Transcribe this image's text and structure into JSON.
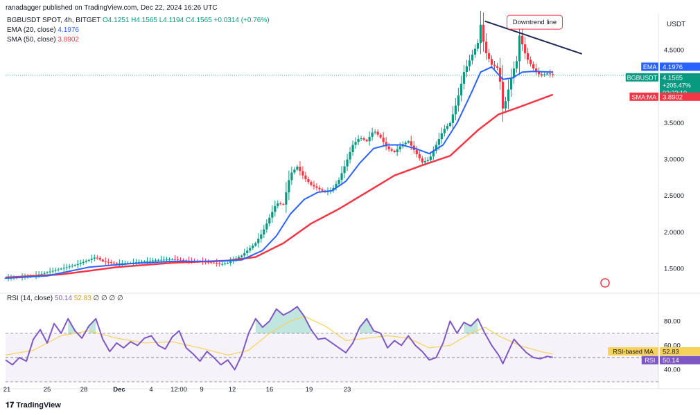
{
  "publisher_line": "ranadagger published on TradingView.com, Dec 22, 2024 16:26 UTC",
  "legend": {
    "symbol": "BGBUSDT SPOT, 4h, BITGET",
    "ohlc": "O4.1251 H4.1565 L4.1194 C4.1565 +0.0314 (+0.76%)",
    "ema_label": "EMA (20, close)",
    "ema_value": "4.1976",
    "sma_label": "SMA (50, close)",
    "sma_value": "3.8902",
    "rsi_label": "RSI (14, close)",
    "rsi_value": "50.14",
    "rsi_ma_value": "52.83",
    "rsi_extra": "∅ ∅ ∅ ∅"
  },
  "branding": "TradingView",
  "colors": {
    "up": "#089981",
    "down": "#f23645",
    "ema": "#2962ff",
    "sma": "#f23645",
    "rsi": "#7e57c2",
    "rsi_ma": "#f7d25a",
    "trendline": "#1e2a55"
  },
  "chart_data": [
    {
      "type": "candlestick",
      "title": "BGBUSDT SPOT, 4h, BITGET",
      "currency": "USDT",
      "ylim": [
        1.2,
        5.0
      ],
      "y_ticks": [
        "4.5000",
        "3.5000",
        "3.0000",
        "2.5000",
        "2.0000",
        "1.5000"
      ],
      "x_ticks": [
        "21",
        "25",
        "28",
        "Dec",
        "4",
        "12:00",
        "9",
        "12",
        "16",
        "19",
        "23"
      ],
      "annotation": "Downtrend line",
      "price_labels": {
        "ema": {
          "label": "EMA",
          "value": "4.1976"
        },
        "last": {
          "label": "BGBUSDT",
          "value": "4.1565",
          "change": "+205.47%",
          "countdown": "03:33:10"
        },
        "sma": {
          "label": "SMA:MA",
          "value": "3.8902"
        }
      },
      "close_path": [
        [
          0,
          1.37
        ],
        [
          10,
          1.38
        ],
        [
          20,
          1.4
        ],
        [
          30,
          1.45
        ],
        [
          40,
          1.5
        ],
        [
          50,
          1.55
        ],
        [
          60,
          1.62
        ],
        [
          65,
          1.66
        ],
        [
          70,
          1.6
        ],
        [
          80,
          1.57
        ],
        [
          90,
          1.58
        ],
        [
          100,
          1.6
        ],
        [
          110,
          1.62
        ],
        [
          120,
          1.63
        ],
        [
          130,
          1.61
        ],
        [
          140,
          1.6
        ],
        [
          150,
          1.58
        ],
        [
          155,
          1.56
        ],
        [
          160,
          1.58
        ],
        [
          170,
          1.68
        ],
        [
          180,
          1.85
        ],
        [
          185,
          2.0
        ],
        [
          190,
          2.2
        ],
        [
          195,
          2.4
        ],
        [
          200,
          2.38
        ],
        [
          205,
          2.8
        ],
        [
          210,
          2.9
        ],
        [
          215,
          2.75
        ],
        [
          220,
          2.65
        ],
        [
          225,
          2.6
        ],
        [
          230,
          2.55
        ],
        [
          235,
          2.58
        ],
        [
          240,
          2.72
        ],
        [
          245,
          2.95
        ],
        [
          250,
          3.2
        ],
        [
          255,
          3.3
        ],
        [
          260,
          3.25
        ],
        [
          265,
          3.4
        ],
        [
          270,
          3.3
        ],
        [
          275,
          3.15
        ],
        [
          280,
          3.1
        ],
        [
          285,
          3.2
        ],
        [
          290,
          3.25
        ],
        [
          295,
          3.1
        ],
        [
          300,
          2.96
        ],
        [
          305,
          3.0
        ],
        [
          310,
          3.2
        ],
        [
          315,
          3.4
        ],
        [
          320,
          3.5
        ],
        [
          325,
          3.8
        ],
        [
          330,
          4.2
        ],
        [
          335,
          4.4
        ],
        [
          340,
          4.6
        ],
        [
          342,
          4.85
        ],
        [
          345,
          4.5
        ],
        [
          350,
          4.3
        ],
        [
          355,
          4.25
        ],
        [
          358,
          3.7
        ],
        [
          360,
          3.8
        ],
        [
          365,
          4.2
        ],
        [
          368,
          4.35
        ],
        [
          370,
          4.7
        ],
        [
          375,
          4.4
        ],
        [
          380,
          4.25
        ],
        [
          385,
          4.15
        ],
        [
          390,
          4.18
        ],
        [
          394,
          4.16
        ]
      ],
      "ema_path": [
        [
          0,
          1.37
        ],
        [
          30,
          1.4
        ],
        [
          60,
          1.52
        ],
        [
          90,
          1.57
        ],
        [
          120,
          1.6
        ],
        [
          150,
          1.6
        ],
        [
          170,
          1.62
        ],
        [
          185,
          1.75
        ],
        [
          195,
          1.95
        ],
        [
          205,
          2.25
        ],
        [
          215,
          2.45
        ],
        [
          225,
          2.55
        ],
        [
          235,
          2.57
        ],
        [
          245,
          2.7
        ],
        [
          255,
          2.95
        ],
        [
          265,
          3.15
        ],
        [
          275,
          3.2
        ],
        [
          285,
          3.2
        ],
        [
          295,
          3.15
        ],
        [
          305,
          3.08
        ],
        [
          315,
          3.2
        ],
        [
          325,
          3.5
        ],
        [
          335,
          3.9
        ],
        [
          342,
          4.2
        ],
        [
          350,
          4.27
        ],
        [
          358,
          4.1
        ],
        [
          365,
          4.12
        ],
        [
          372,
          4.2
        ],
        [
          380,
          4.21
        ],
        [
          394,
          4.2
        ]
      ],
      "sma_path": [
        [
          0,
          1.38
        ],
        [
          40,
          1.42
        ],
        [
          80,
          1.52
        ],
        [
          120,
          1.58
        ],
        [
          160,
          1.61
        ],
        [
          180,
          1.66
        ],
        [
          200,
          1.85
        ],
        [
          220,
          2.12
        ],
        [
          240,
          2.32
        ],
        [
          260,
          2.55
        ],
        [
          280,
          2.78
        ],
        [
          300,
          2.92
        ],
        [
          320,
          3.05
        ],
        [
          340,
          3.4
        ],
        [
          355,
          3.62
        ],
        [
          370,
          3.72
        ],
        [
          394,
          3.89
        ]
      ],
      "trendline": [
        [
          345,
          4.9
        ],
        [
          415,
          4.45
        ]
      ]
    },
    {
      "type": "line",
      "title": "RSI (14, close)",
      "ylim": [
        30,
        95
      ],
      "y_ticks": [
        "80.00",
        "60.00",
        "40.00"
      ],
      "bands": [
        30,
        70
      ],
      "rsi_labels": {
        "ma": {
          "label": "RSI-based MA",
          "value": "52.83"
        },
        "rsi": {
          "label": "RSI",
          "value": "50.14"
        }
      },
      "rsi_path": [
        [
          0,
          48
        ],
        [
          5,
          44
        ],
        [
          10,
          50
        ],
        [
          15,
          47
        ],
        [
          20,
          65
        ],
        [
          25,
          73
        ],
        [
          30,
          62
        ],
        [
          35,
          78
        ],
        [
          40,
          70
        ],
        [
          45,
          82
        ],
        [
          50,
          72
        ],
        [
          55,
          66
        ],
        [
          60,
          76
        ],
        [
          65,
          82
        ],
        [
          70,
          65
        ],
        [
          75,
          55
        ],
        [
          80,
          62
        ],
        [
          85,
          58
        ],
        [
          90,
          63
        ],
        [
          95,
          60
        ],
        [
          100,
          66
        ],
        [
          105,
          68
        ],
        [
          110,
          60
        ],
        [
          115,
          57
        ],
        [
          120,
          67
        ],
        [
          125,
          72
        ],
        [
          130,
          58
        ],
        [
          135,
          53
        ],
        [
          140,
          47
        ],
        [
          145,
          55
        ],
        [
          150,
          50
        ],
        [
          155,
          44
        ],
        [
          160,
          48
        ],
        [
          165,
          40
        ],
        [
          170,
          52
        ],
        [
          175,
          70
        ],
        [
          180,
          82
        ],
        [
          185,
          75
        ],
        [
          190,
          80
        ],
        [
          195,
          90
        ],
        [
          200,
          85
        ],
        [
          205,
          88
        ],
        [
          210,
          92
        ],
        [
          215,
          84
        ],
        [
          220,
          73
        ],
        [
          225,
          65
        ],
        [
          230,
          66
        ],
        [
          235,
          62
        ],
        [
          240,
          58
        ],
        [
          245,
          54
        ],
        [
          250,
          62
        ],
        [
          255,
          75
        ],
        [
          260,
          82
        ],
        [
          265,
          72
        ],
        [
          270,
          70
        ],
        [
          275,
          58
        ],
        [
          280,
          64
        ],
        [
          285,
          60
        ],
        [
          290,
          68
        ],
        [
          295,
          60
        ],
        [
          300,
          55
        ],
        [
          305,
          48
        ],
        [
          310,
          50
        ],
        [
          315,
          62
        ],
        [
          320,
          80
        ],
        [
          325,
          70
        ],
        [
          330,
          79
        ],
        [
          335,
          76
        ],
        [
          340,
          82
        ],
        [
          345,
          70
        ],
        [
          350,
          60
        ],
        [
          355,
          52
        ],
        [
          358,
          45
        ],
        [
          362,
          55
        ],
        [
          366,
          65
        ],
        [
          370,
          60
        ],
        [
          375,
          54
        ],
        [
          380,
          50
        ],
        [
          385,
          49
        ],
        [
          390,
          51
        ],
        [
          394,
          50.14
        ]
      ],
      "rsi_ma_path": [
        [
          0,
          52
        ],
        [
          20,
          56
        ],
        [
          40,
          68
        ],
        [
          60,
          72
        ],
        [
          80,
          66
        ],
        [
          100,
          62
        ],
        [
          120,
          63
        ],
        [
          140,
          58
        ],
        [
          160,
          52
        ],
        [
          175,
          56
        ],
        [
          190,
          70
        ],
        [
          205,
          80
        ],
        [
          215,
          84
        ],
        [
          230,
          76
        ],
        [
          245,
          64
        ],
        [
          260,
          66
        ],
        [
          275,
          68
        ],
        [
          290,
          66
        ],
        [
          305,
          58
        ],
        [
          320,
          60
        ],
        [
          335,
          70
        ],
        [
          345,
          75
        ],
        [
          355,
          68
        ],
        [
          370,
          60
        ],
        [
          385,
          55
        ],
        [
          394,
          52.83
        ]
      ]
    }
  ]
}
